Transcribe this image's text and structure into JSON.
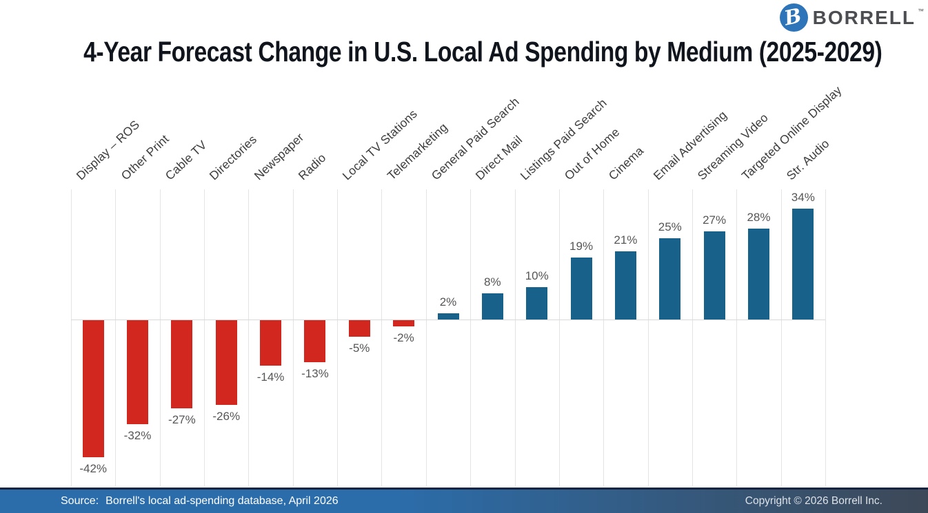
{
  "header": {
    "title": "4-Year Forecast Change in U.S. Local Ad Spending by Medium (2025-2029)"
  },
  "logo": {
    "monogram": "B",
    "brand": "BORRELL",
    "trademark": "™",
    "circle_color": "#2e74b8",
    "text_color": "#4b4d50"
  },
  "chart_data": {
    "type": "bar",
    "title": "4-Year Forecast Change in U.S. Local Ad Spending by Medium (2025-2029)",
    "categories": [
      "Display – ROS",
      "Other Print",
      "Cable TV",
      "Directories",
      "Newspaper",
      "Radio",
      "Local TV Stations",
      "Telemarketing",
      "General Paid Search",
      "Direct Mail",
      "Listings Paid Search",
      "Out of Home",
      "Cinema",
      "Email Advertising",
      "Streaming Video",
      "Targeted Online Display",
      "Str. Audio"
    ],
    "values": [
      -42,
      -32,
      -27,
      -26,
      -14,
      -13,
      -5,
      -2,
      2,
      8,
      10,
      19,
      21,
      25,
      27,
      28,
      34
    ],
    "value_labels": [
      "-42%",
      "-32%",
      "-27%",
      "-26%",
      "-14%",
      "-13%",
      "-5%",
      "-2%",
      "2%",
      "8%",
      "10%",
      "19%",
      "21%",
      "25%",
      "27%",
      "28%",
      "34%"
    ],
    "unit": "%",
    "xlabel": "",
    "ylabel": "",
    "ylim": [
      -50,
      40
    ],
    "legend": "none",
    "grid": "vertical column separators and zero baseline only",
    "bar_colors": {
      "positive": "#17618b",
      "negative": "#d2271e"
    },
    "gridline_color": "#e4e4e4",
    "value_label_color": "#565656",
    "category_label_color": "#3d3d3d",
    "category_label_rotation_deg": -43
  },
  "footer": {
    "source_label": "Source:",
    "source_text": "Borrell's local ad-spending database, April 2026",
    "copyright": "Copyright © 2026 Borrell Inc.",
    "bar_gradient": [
      "#2b6dab",
      "#3d4857"
    ],
    "top_strip_color": "#16243f"
  }
}
